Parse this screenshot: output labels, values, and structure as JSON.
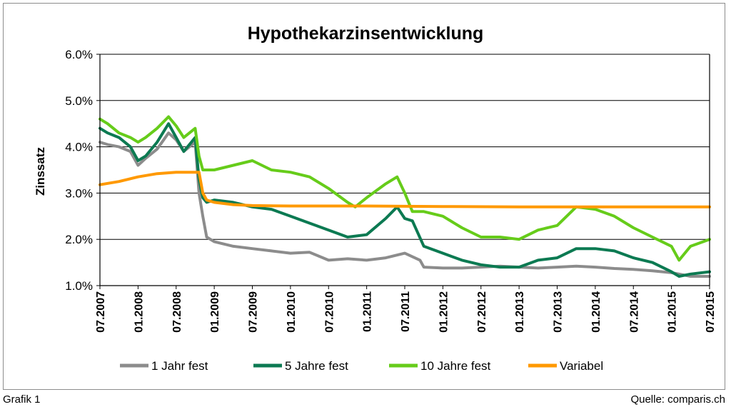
{
  "footer": {
    "left": "Grafik 1",
    "right": "Quelle: comparis.ch"
  },
  "colors": {
    "s1": "#8c8c8c",
    "s2": "#0c7a52",
    "s3": "#66cc1a",
    "s4": "#ff9900"
  },
  "chart_data": {
    "type": "line",
    "title": "Hypothekarzinsentwicklung",
    "ylabel": "Zinssatz",
    "xlabel": "",
    "ylim": [
      1.0,
      6.0
    ],
    "yticks": [
      "6.0%",
      "5.0%",
      "4.0%",
      "3.0%",
      "2.0%",
      "1.0%"
    ],
    "xlim": [
      2007.5,
      2015.5
    ],
    "xticks": [
      "07.2007",
      "01.2008",
      "07.2008",
      "01.2009",
      "07.2009",
      "01.2010",
      "07.2010",
      "01.2011",
      "07.2011",
      "01.2012",
      "07.2012",
      "01.2013",
      "07.2013",
      "01.2014",
      "07.2014",
      "01.2015",
      "07.2015"
    ],
    "grid": "horizontal",
    "legend_position": "bottom",
    "series": [
      {
        "name": "1 Jahr fest",
        "color": "#8c8c8c",
        "x": [
          2007.5,
          2007.6,
          2007.75,
          2007.9,
          2008.0,
          2008.1,
          2008.25,
          2008.4,
          2008.5,
          2008.6,
          2008.75,
          2008.8,
          2008.85,
          2008.9,
          2009.0,
          2009.25,
          2009.5,
          2009.75,
          2010.0,
          2010.25,
          2010.5,
          2010.75,
          2011.0,
          2011.25,
          2011.5,
          2011.7,
          2011.75,
          2012.0,
          2012.25,
          2012.5,
          2012.75,
          2013.0,
          2013.25,
          2013.5,
          2013.75,
          2014.0,
          2014.25,
          2014.5,
          2014.75,
          2015.0,
          2015.1,
          2015.25,
          2015.5
        ],
        "values": [
          4.1,
          4.05,
          4.0,
          3.9,
          3.6,
          3.75,
          3.95,
          4.3,
          4.15,
          3.9,
          4.1,
          3.0,
          2.5,
          2.05,
          1.95,
          1.85,
          1.8,
          1.75,
          1.7,
          1.72,
          1.55,
          1.58,
          1.55,
          1.6,
          1.7,
          1.55,
          1.4,
          1.38,
          1.38,
          1.4,
          1.42,
          1.4,
          1.38,
          1.4,
          1.42,
          1.4,
          1.37,
          1.35,
          1.32,
          1.28,
          1.25,
          1.2,
          1.2
        ]
      },
      {
        "name": "5 Jahre fest",
        "color": "#0c7a52",
        "x": [
          2007.5,
          2007.6,
          2007.75,
          2007.9,
          2008.0,
          2008.1,
          2008.25,
          2008.4,
          2008.5,
          2008.6,
          2008.75,
          2008.8,
          2008.85,
          2008.9,
          2009.0,
          2009.25,
          2009.5,
          2009.75,
          2010.0,
          2010.25,
          2010.5,
          2010.75,
          2011.0,
          2011.25,
          2011.4,
          2011.5,
          2011.6,
          2011.75,
          2012.0,
          2012.25,
          2012.5,
          2012.75,
          2013.0,
          2013.25,
          2013.5,
          2013.75,
          2014.0,
          2014.25,
          2014.5,
          2014.75,
          2015.0,
          2015.1,
          2015.25,
          2015.5
        ],
        "values": [
          4.4,
          4.3,
          4.2,
          4.0,
          3.7,
          3.8,
          4.1,
          4.5,
          4.2,
          3.9,
          4.2,
          3.3,
          2.9,
          2.8,
          2.85,
          2.8,
          2.7,
          2.65,
          2.5,
          2.35,
          2.2,
          2.05,
          2.1,
          2.45,
          2.7,
          2.45,
          2.4,
          1.85,
          1.7,
          1.55,
          1.45,
          1.4,
          1.4,
          1.55,
          1.6,
          1.8,
          1.8,
          1.75,
          1.6,
          1.5,
          1.3,
          1.2,
          1.25,
          1.3
        ]
      },
      {
        "name": "10 Jahre fest",
        "color": "#66cc1a",
        "x": [
          2007.5,
          2007.6,
          2007.75,
          2007.9,
          2008.0,
          2008.1,
          2008.25,
          2008.4,
          2008.5,
          2008.6,
          2008.75,
          2008.8,
          2008.85,
          2008.9,
          2009.0,
          2009.25,
          2009.5,
          2009.75,
          2010.0,
          2010.25,
          2010.5,
          2010.75,
          2010.85,
          2011.0,
          2011.25,
          2011.4,
          2011.5,
          2011.6,
          2011.75,
          2012.0,
          2012.25,
          2012.5,
          2012.75,
          2013.0,
          2013.25,
          2013.5,
          2013.75,
          2014.0,
          2014.25,
          2014.5,
          2014.75,
          2015.0,
          2015.1,
          2015.25,
          2015.5
        ],
        "values": [
          4.6,
          4.5,
          4.3,
          4.2,
          4.1,
          4.2,
          4.4,
          4.65,
          4.45,
          4.2,
          4.4,
          3.8,
          3.5,
          3.5,
          3.5,
          3.6,
          3.7,
          3.5,
          3.45,
          3.35,
          3.1,
          2.8,
          2.7,
          2.9,
          3.2,
          3.35,
          3.0,
          2.6,
          2.6,
          2.5,
          2.25,
          2.05,
          2.05,
          2.0,
          2.2,
          2.3,
          2.7,
          2.65,
          2.5,
          2.25,
          2.05,
          1.85,
          1.55,
          1.85,
          2.0
        ]
      },
      {
        "name": "Variabel",
        "color": "#ff9900",
        "x": [
          2007.5,
          2007.75,
          2008.0,
          2008.25,
          2008.5,
          2008.75,
          2008.8,
          2008.85,
          2008.9,
          2009.0,
          2009.25,
          2009.5,
          2010.0,
          2011.0,
          2012.0,
          2013.0,
          2014.0,
          2015.0,
          2015.5
        ],
        "values": [
          3.18,
          3.25,
          3.35,
          3.42,
          3.45,
          3.45,
          3.45,
          3.0,
          2.85,
          2.8,
          2.75,
          2.73,
          2.72,
          2.72,
          2.71,
          2.7,
          2.7,
          2.7,
          2.7
        ]
      }
    ]
  }
}
